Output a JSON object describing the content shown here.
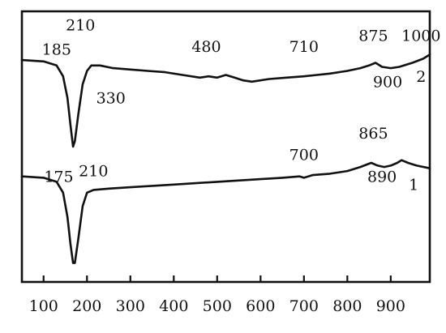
{
  "chart_data": {
    "type": "line",
    "title": "",
    "xlabel": "",
    "ylabel": "",
    "xlim": [
      50,
      990
    ],
    "ylim": [
      0,
      1
    ],
    "grid": false,
    "legend": "none",
    "x_ticks": [
      100,
      200,
      300,
      400,
      500,
      600,
      700,
      800,
      900
    ],
    "series": [
      {
        "name": "2",
        "label_position": [
          970,
          0.74
        ],
        "points": [
          [
            50,
            0.82
          ],
          [
            100,
            0.815
          ],
          [
            130,
            0.8
          ],
          [
            145,
            0.76
          ],
          [
            155,
            0.68
          ],
          [
            162,
            0.58
          ],
          [
            168,
            0.5
          ],
          [
            172,
            0.52
          ],
          [
            180,
            0.62
          ],
          [
            190,
            0.73
          ],
          [
            200,
            0.78
          ],
          [
            210,
            0.8
          ],
          [
            230,
            0.8
          ],
          [
            260,
            0.79
          ],
          [
            300,
            0.785
          ],
          [
            340,
            0.78
          ],
          [
            380,
            0.775
          ],
          [
            420,
            0.765
          ],
          [
            460,
            0.755
          ],
          [
            480,
            0.76
          ],
          [
            500,
            0.755
          ],
          [
            520,
            0.765
          ],
          [
            540,
            0.755
          ],
          [
            560,
            0.745
          ],
          [
            580,
            0.74
          ],
          [
            620,
            0.75
          ],
          [
            660,
            0.755
          ],
          [
            700,
            0.76
          ],
          [
            730,
            0.765
          ],
          [
            760,
            0.77
          ],
          [
            800,
            0.78
          ],
          [
            830,
            0.79
          ],
          [
            850,
            0.8
          ],
          [
            865,
            0.81
          ],
          [
            880,
            0.795
          ],
          [
            900,
            0.79
          ],
          [
            920,
            0.795
          ],
          [
            950,
            0.81
          ],
          [
            975,
            0.825
          ],
          [
            990,
            0.84
          ]
        ],
        "annotations": [
          {
            "text": "185",
            "x": 185,
            "y": 0.82,
            "label_position": [
              130,
              0.84
            ]
          },
          {
            "text": "210",
            "x": 210,
            "y": 0.8,
            "label_position": [
              185,
              0.93
            ]
          },
          {
            "text": "330",
            "x": 330,
            "y": 0.78,
            "label_position": [
              255,
              0.66
            ]
          },
          {
            "text": "480",
            "x": 480,
            "y": 0.76,
            "label_position": [
              475,
              0.85
            ]
          },
          {
            "text": "710",
            "x": 710,
            "y": 0.76,
            "label_position": [
              700,
              0.85
            ]
          },
          {
            "text": "875",
            "x": 875,
            "y": 0.81,
            "label_position": [
              860,
              0.89
            ]
          },
          {
            "text": "900",
            "x": 900,
            "y": 0.79,
            "label_position": [
              893,
              0.72
            ]
          },
          {
            "text": "1000",
            "x": 990,
            "y": 0.84,
            "label_position": [
              970,
              0.89
            ]
          }
        ]
      },
      {
        "name": "1",
        "label_position": [
          953,
          0.34
        ],
        "points": [
          [
            50,
            0.39
          ],
          [
            100,
            0.385
          ],
          [
            130,
            0.37
          ],
          [
            145,
            0.33
          ],
          [
            155,
            0.24
          ],
          [
            162,
            0.14
          ],
          [
            168,
            0.07
          ],
          [
            172,
            0.07
          ],
          [
            180,
            0.16
          ],
          [
            190,
            0.28
          ],
          [
            200,
            0.33
          ],
          [
            215,
            0.34
          ],
          [
            250,
            0.345
          ],
          [
            300,
            0.35
          ],
          [
            400,
            0.36
          ],
          [
            500,
            0.37
          ],
          [
            600,
            0.38
          ],
          [
            650,
            0.385
          ],
          [
            690,
            0.39
          ],
          [
            700,
            0.385
          ],
          [
            720,
            0.395
          ],
          [
            760,
            0.4
          ],
          [
            800,
            0.41
          ],
          [
            830,
            0.425
          ],
          [
            855,
            0.44
          ],
          [
            870,
            0.43
          ],
          [
            885,
            0.425
          ],
          [
            900,
            0.43
          ],
          [
            915,
            0.44
          ],
          [
            925,
            0.45
          ],
          [
            940,
            0.44
          ],
          [
            960,
            0.43
          ],
          [
            990,
            0.42
          ]
        ],
        "annotations": [
          {
            "text": "175",
            "x": 175,
            "y": 0.39,
            "label_position": [
              135,
              0.37
            ]
          },
          {
            "text": "210",
            "x": 210,
            "y": 0.34,
            "label_position": [
              215,
              0.39
            ]
          },
          {
            "text": "700",
            "x": 700,
            "y": 0.39,
            "label_position": [
              700,
              0.45
            ]
          },
          {
            "text": "865",
            "x": 865,
            "y": 0.44,
            "label_position": [
              860,
              0.53
            ]
          },
          {
            "text": "890",
            "x": 890,
            "y": 0.43,
            "label_position": [
              880,
              0.37
            ]
          }
        ]
      }
    ]
  }
}
